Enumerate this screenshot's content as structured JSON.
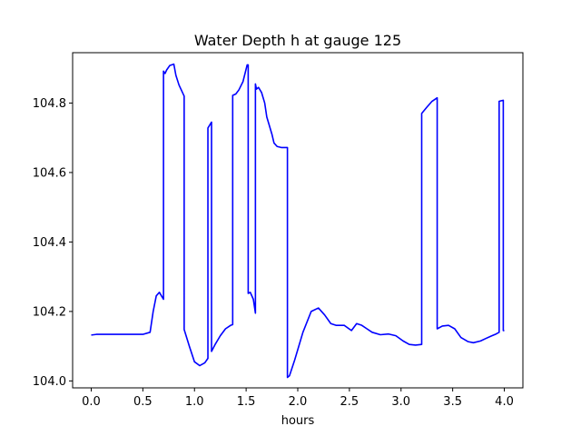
{
  "chart_data": {
    "type": "line",
    "title": "Water Depth h at gauge 125",
    "xlabel": "hours",
    "ylabel": "",
    "xlim": [
      -0.18,
      4.18
    ],
    "ylim": [
      103.98,
      104.945
    ],
    "xticks": [
      0.0,
      0.5,
      1.0,
      1.5,
      2.0,
      2.5,
      3.0,
      3.5,
      4.0
    ],
    "xtick_labels": [
      "0.0",
      "0.5",
      "1.0",
      "1.5",
      "2.0",
      "2.5",
      "3.0",
      "3.5",
      "4.0"
    ],
    "yticks": [
      104.0,
      104.2,
      104.4,
      104.6,
      104.8
    ],
    "ytick_labels": [
      "104.0",
      "104.2",
      "104.4",
      "104.6",
      "104.8"
    ],
    "grid": false,
    "series": [
      {
        "color": "#0000ff",
        "x": [
          0.0,
          0.05,
          0.3,
          0.5,
          0.57,
          0.6,
          0.63,
          0.66,
          0.68,
          0.7,
          0.7,
          0.715,
          0.73,
          0.76,
          0.8,
          0.82,
          0.85,
          0.9,
          0.9,
          0.95,
          1.0,
          1.05,
          1.1,
          1.13,
          1.13,
          1.165,
          1.165,
          1.2,
          1.25,
          1.3,
          1.35,
          1.37,
          1.37,
          1.4,
          1.43,
          1.47,
          1.51,
          1.52,
          1.52,
          1.54,
          1.57,
          1.57,
          1.59,
          1.59,
          1.6,
          1.62,
          1.65,
          1.68,
          1.7,
          1.72,
          1.75,
          1.77,
          1.8,
          1.84,
          1.88,
          1.9,
          1.9,
          1.92,
          1.97,
          2.05,
          2.13,
          2.2,
          2.26,
          2.32,
          2.37,
          2.45,
          2.52,
          2.57,
          2.62,
          2.67,
          2.72,
          2.8,
          2.88,
          2.95,
          3.02,
          3.08,
          3.14,
          3.2,
          3.2,
          3.25,
          3.3,
          3.35,
          3.35,
          3.4,
          3.46,
          3.52,
          3.58,
          3.65,
          3.7,
          3.77,
          3.82,
          3.88,
          3.92,
          3.95,
          3.95,
          3.99,
          3.99,
          4.0
        ],
        "y": [
          104.132,
          104.134,
          104.134,
          104.134,
          104.14,
          104.2,
          104.245,
          104.255,
          104.245,
          104.235,
          104.892,
          104.885,
          104.895,
          104.908,
          104.912,
          104.88,
          104.852,
          104.82,
          104.148,
          104.1,
          104.055,
          104.044,
          104.052,
          104.065,
          104.728,
          104.745,
          104.085,
          104.105,
          104.13,
          104.15,
          104.16,
          104.162,
          104.822,
          104.826,
          104.838,
          104.862,
          104.91,
          104.91,
          104.252,
          104.255,
          104.235,
          104.235,
          104.195,
          104.855,
          104.84,
          104.845,
          104.83,
          104.8,
          104.76,
          104.74,
          104.71,
          104.685,
          104.675,
          104.672,
          104.672,
          104.672,
          104.01,
          104.015,
          104.06,
          104.14,
          104.2,
          104.21,
          104.19,
          104.165,
          104.16,
          104.16,
          104.145,
          104.165,
          104.16,
          104.15,
          104.14,
          104.133,
          104.135,
          104.13,
          104.115,
          104.105,
          104.103,
          104.105,
          104.77,
          104.788,
          104.805,
          104.815,
          104.15,
          104.158,
          104.16,
          104.15,
          104.125,
          104.113,
          104.11,
          104.115,
          104.122,
          104.13,
          104.135,
          104.14,
          104.805,
          104.808,
          104.145,
          104.145
        ]
      }
    ]
  }
}
